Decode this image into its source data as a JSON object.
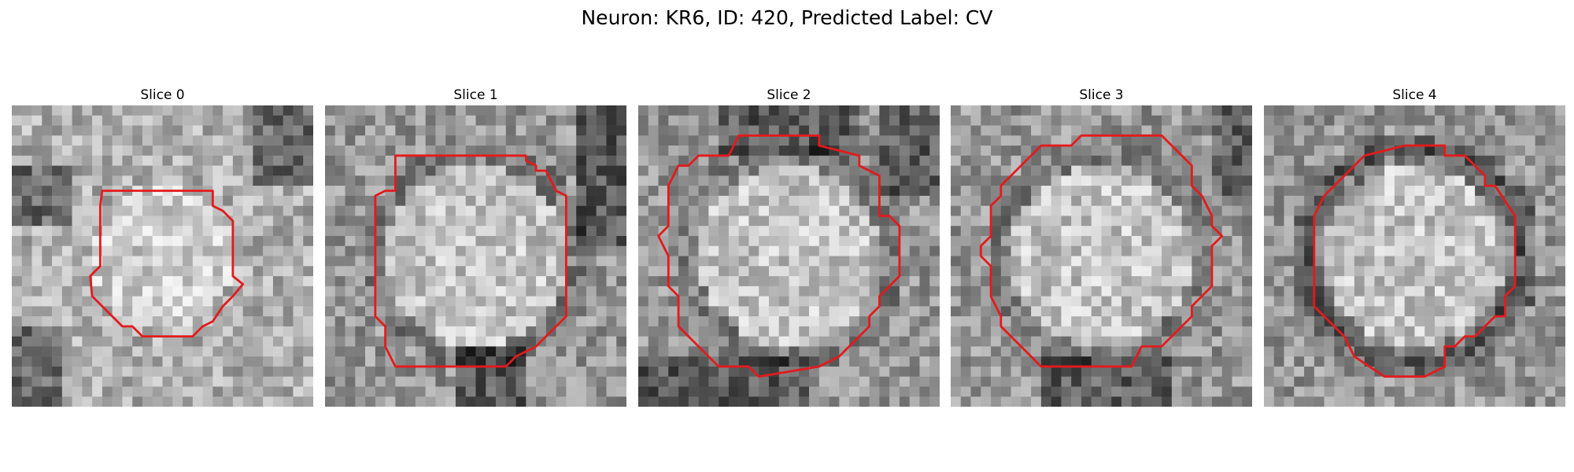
{
  "figure": {
    "title": "Neuron: KR6, ID: 420, Predicted Label: CV"
  },
  "panels": [
    {
      "title": "Slice 0",
      "seed": 11,
      "dark_edges": [
        "left",
        "top-right",
        "bottom-left"
      ]
    },
    {
      "title": "Slice 1",
      "seed": 23,
      "dark_edges": [
        "top-right",
        "bottom"
      ]
    },
    {
      "title": "Slice 2",
      "seed": 37,
      "dark_edges": [
        "top",
        "top-right",
        "bottom"
      ]
    },
    {
      "title": "Slice 3",
      "seed": 41,
      "dark_edges": [
        "top-right",
        "bottom"
      ]
    },
    {
      "title": "Slice 4",
      "seed": 53,
      "dark_edges": [
        "ring"
      ]
    }
  ],
  "colors": {
    "contour": "#e41a1c"
  }
}
